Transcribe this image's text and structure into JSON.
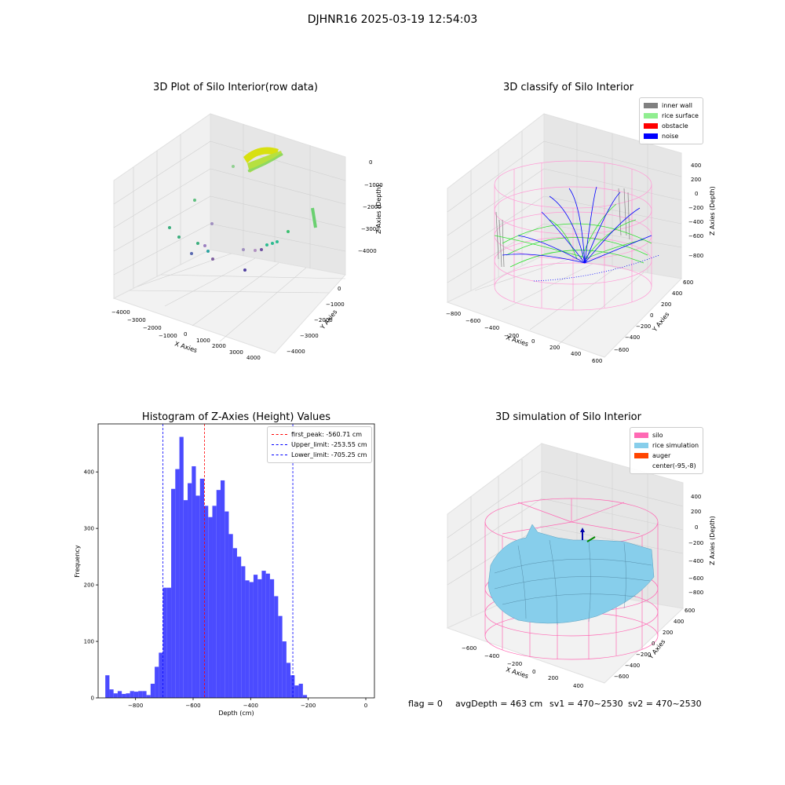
{
  "suptitle": "DJHNR16 2025-03-19 12:54:03",
  "footer": {
    "flag": "flag = 0",
    "avg": "avgDepth = 463 cm",
    "sv1": "sv1 = 470~2530",
    "sv2": "sv2 = 470~2530"
  },
  "panels": {
    "raw": {
      "title": "3D Plot of Silo Interior(row data)",
      "xlabel": "X Axies",
      "ylabel": "Y Axies",
      "zlabel": "Z Axies (Depth)",
      "xticks": [
        "−4000",
        "−3000",
        "−2000",
        "−1000",
        "0",
        "1000",
        "2000",
        "3000",
        "4000"
      ],
      "yticks": [
        "0",
        "−1000",
        "−2000",
        "−3000",
        "−4000"
      ],
      "zticks": [
        "0",
        "−1000",
        "−2000",
        "−3000",
        "−4000"
      ]
    },
    "classify": {
      "title": "3D classify of Silo Interior",
      "xlabel": "X Axies",
      "ylabel": "Y Axies",
      "zlabel": "Z Axies (Depth)",
      "xticks": [
        "−800",
        "−600",
        "−400",
        "−200",
        "0",
        "200",
        "400",
        "600"
      ],
      "yticks": [
        "600",
        "400",
        "200",
        "0",
        "−200",
        "−400",
        "−600"
      ],
      "zticks": [
        "400",
        "200",
        "0",
        "−200",
        "−400",
        "−600",
        "−800"
      ],
      "legend": [
        {
          "label": "inner wall",
          "color": "#808080"
        },
        {
          "label": "rice surface",
          "color": "#90ee90"
        },
        {
          "label": "obstacle",
          "color": "#ff0000"
        },
        {
          "label": "noise",
          "color": "#0000ff"
        }
      ]
    },
    "simulation": {
      "title": "3D simulation of Silo Interior",
      "xlabel": "X Axies",
      "ylabel": "Y Axies",
      "zlabel": "Z Axies (Depth)",
      "xticks": [
        "−600",
        "−400",
        "−200",
        "0",
        "200",
        "400"
      ],
      "yticks": [
        "600",
        "400",
        "200",
        "0",
        "−200",
        "−400",
        "−600"
      ],
      "zticks": [
        "400",
        "200",
        "0",
        "−200",
        "−400",
        "−600",
        "−800"
      ],
      "legend": [
        {
          "label": "silo",
          "color": "#ff69b4"
        },
        {
          "label": "rice simulation",
          "color": "#87ceeb"
        },
        {
          "label": "auger",
          "color": "#ff4500"
        },
        {
          "label": "center(-95,-8)",
          "color": ""
        }
      ]
    }
  },
  "chart_data": {
    "type": "bar",
    "title": "Histogram of Z-Axies (Height) Values",
    "xlabel": "Depth (cm)",
    "ylabel": "Frequency",
    "xlim": [
      -930,
      30
    ],
    "ylim": [
      0,
      485
    ],
    "xticks": [
      -800,
      -600,
      -400,
      -200,
      0
    ],
    "yticks": [
      0,
      100,
      200,
      300,
      400
    ],
    "bin_start": -905,
    "bin_width": 14.3,
    "values": [
      40,
      15,
      8,
      12,
      7,
      8,
      12,
      11,
      12,
      12,
      5,
      25,
      55,
      80,
      195,
      195,
      370,
      405,
      462,
      350,
      380,
      410,
      358,
      388,
      340,
      320,
      340,
      368,
      385,
      330,
      290,
      265,
      250,
      233,
      208,
      205,
      218,
      210,
      225,
      220,
      210,
      180,
      145,
      100,
      62,
      40,
      22,
      25,
      5
    ],
    "lines": [
      {
        "label": "first_peak: -560.71 cm",
        "x": -560.71,
        "color": "#ff0000"
      },
      {
        "label": "Upper_limit: -253.55 cm",
        "x": -253.55,
        "color": "#0000ff"
      },
      {
        "label": "Lower_limit: -705.25 cm",
        "x": -705.25,
        "color": "#0000ff"
      }
    ],
    "bar_color": "#4b4bff",
    "legend_loc": "upper right"
  }
}
